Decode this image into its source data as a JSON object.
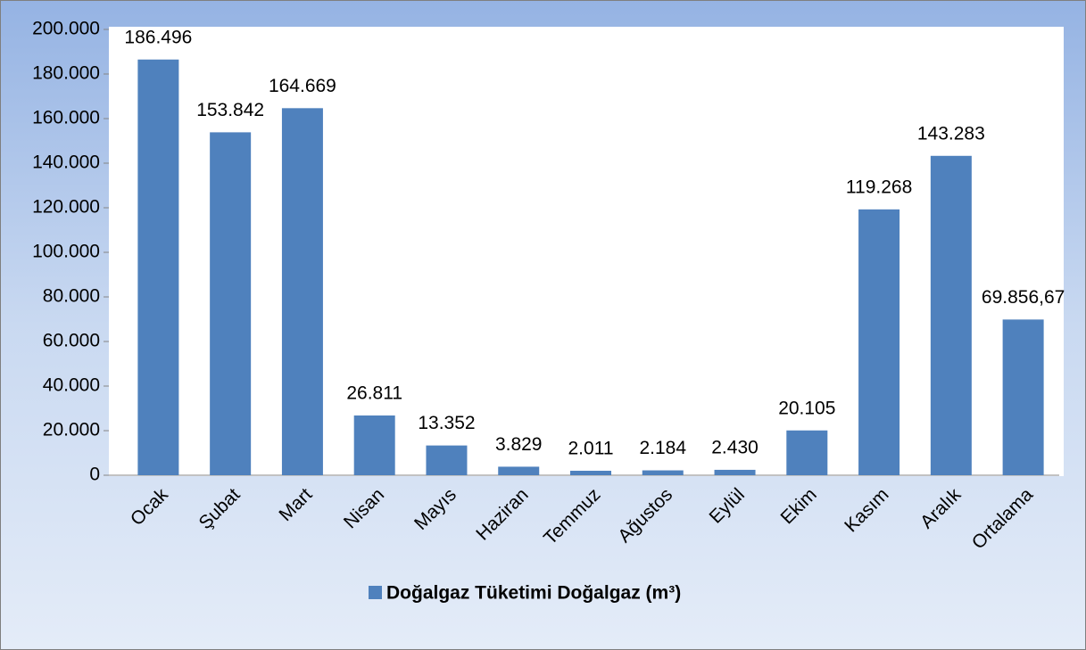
{
  "chart_data": {
    "type": "bar",
    "categories": [
      "Ocak",
      "Şubat",
      "Mart",
      "Nisan",
      "Mayıs",
      "Haziran",
      "Temmuz",
      "Ağustos",
      "Eylül",
      "Ekim",
      "Kasım",
      "Aralık",
      "Ortalama"
    ],
    "series": [
      {
        "name": "Doğalgaz Tüketimi Doğalgaz (m³)",
        "color": "#4f81bd",
        "values": [
          186496,
          153842,
          164669,
          26811,
          13352,
          3829,
          2011,
          2184,
          2430,
          20105,
          119268,
          143283,
          69856.67
        ],
        "value_labels": [
          "186.496",
          "153.842",
          "164.669",
          "26.811",
          "13.352",
          "3.829",
          "2.011",
          "2.184",
          "2.430",
          "20.105",
          "119.268",
          "143.283",
          "69.856,67"
        ]
      }
    ],
    "ylim": [
      0,
      200000
    ],
    "yticks": [
      0,
      {
        "value": 20000,
        "label": "20.000"
      },
      {
        "value": 40000,
        "label": "40.000"
      },
      {
        "value": 60000,
        "label": "60.000"
      },
      {
        "value": 80000,
        "label": "80.000"
      },
      {
        "value": 100000,
        "label": "100.000"
      },
      {
        "value": 120000,
        "label": "120.000"
      },
      {
        "value": 140000,
        "label": "140.000"
      },
      {
        "value": 160000,
        "label": "160.000"
      },
      {
        "value": 180000,
        "label": "180.000"
      },
      {
        "value": 200000,
        "label": "200.000"
      }
    ],
    "legend": "bottom"
  }
}
